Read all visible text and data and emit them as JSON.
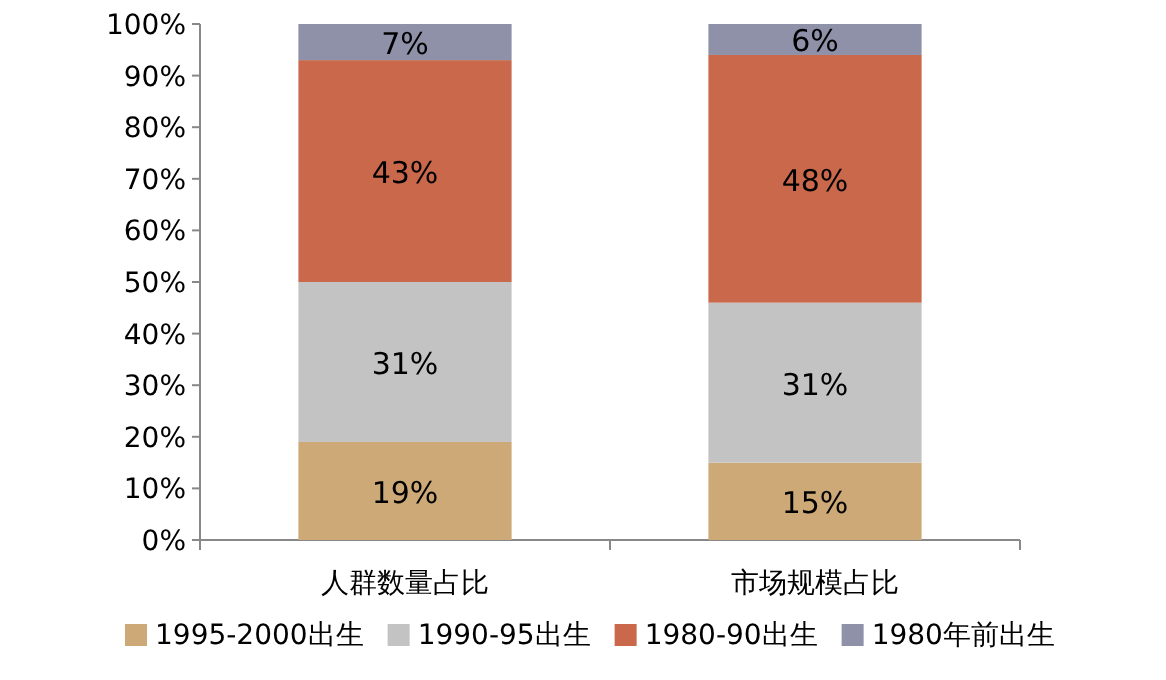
{
  "chart_data": {
    "type": "bar",
    "stacked": true,
    "categories": [
      "人群数量占比",
      "市场规模占比"
    ],
    "series": [
      {
        "name": "1995-2000出生",
        "color": "#cda977",
        "values": [
          19,
          15
        ],
        "value_labels": [
          "19%",
          "15%"
        ]
      },
      {
        "name": "1990-95出生",
        "color": "#c3c3c3",
        "values": [
          31,
          31
        ],
        "value_labels": [
          "31%",
          "31%"
        ]
      },
      {
        "name": "1980-90出生",
        "color": "#c9684b",
        "values": [
          43,
          48
        ],
        "value_labels": [
          "43%",
          "48%"
        ]
      },
      {
        "name": "1980年前出生",
        "color": "#8e91a8",
        "values": [
          7,
          6
        ],
        "value_labels": [
          "7%",
          "6%"
        ]
      }
    ],
    "ylim": [
      0,
      100
    ],
    "yticks": [
      {
        "value": 0,
        "label": "0%"
      },
      {
        "value": 10,
        "label": "10%"
      },
      {
        "value": 20,
        "label": "20%"
      },
      {
        "value": 30,
        "label": "30%"
      },
      {
        "value": 40,
        "label": "40%"
      },
      {
        "value": 50,
        "label": "50%"
      },
      {
        "value": 60,
        "label": "60%"
      },
      {
        "value": 70,
        "label": "70%"
      },
      {
        "value": 80,
        "label": "80%"
      },
      {
        "value": 90,
        "label": "90%"
      },
      {
        "value": 100,
        "label": "100%"
      }
    ],
    "grid": false,
    "legend": "bottom"
  }
}
